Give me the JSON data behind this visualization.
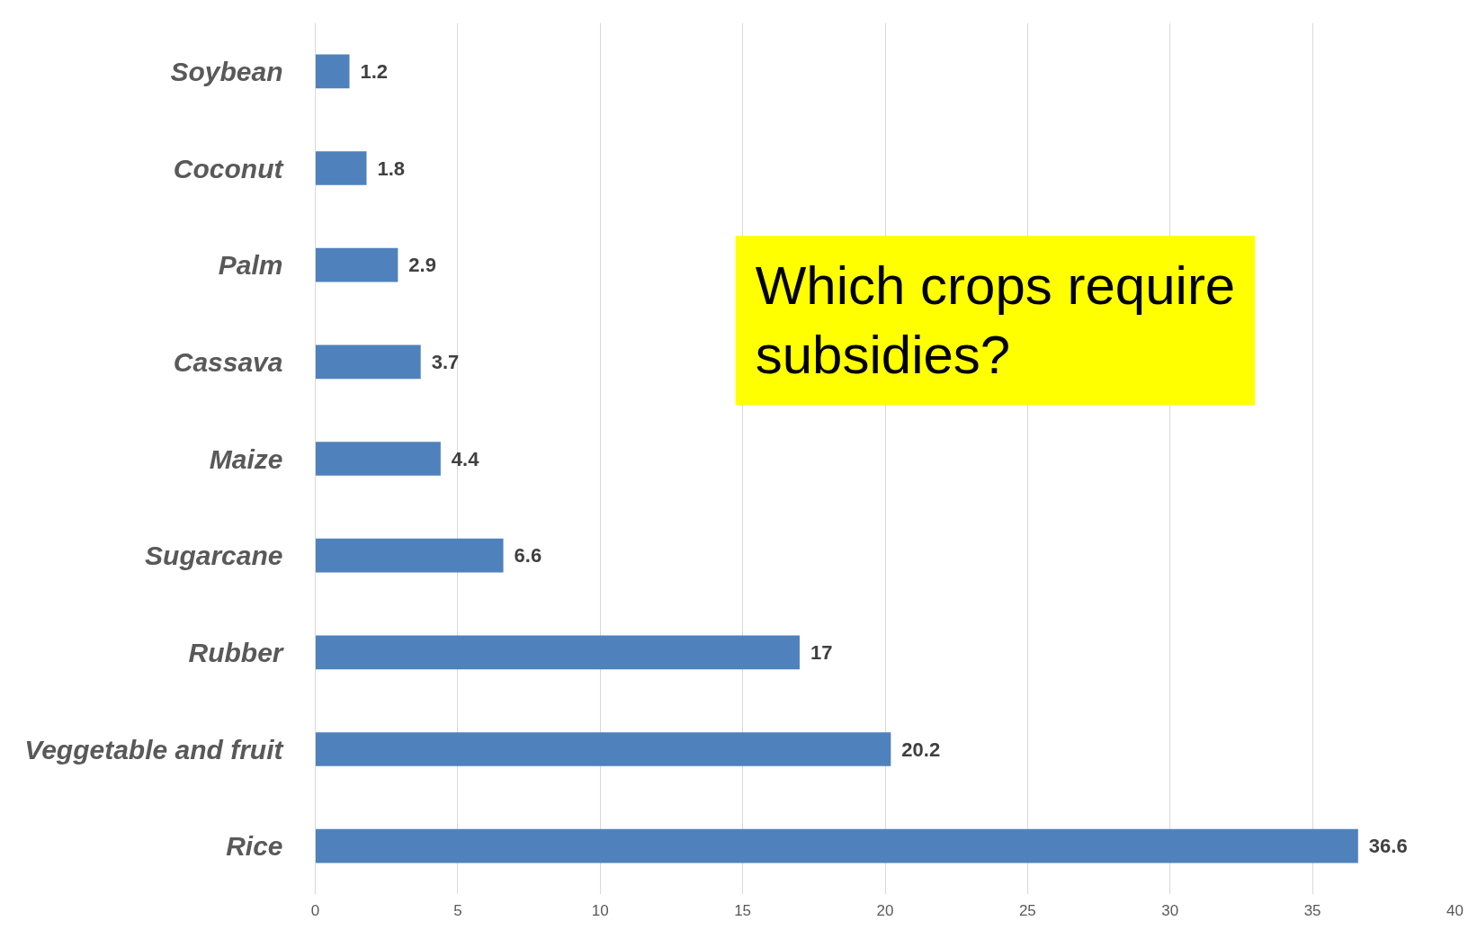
{
  "chart_data": {
    "type": "bar",
    "orientation": "horizontal",
    "categories": [
      "Soybean",
      "Coconut",
      "Palm",
      "Cassava",
      "Maize",
      "Sugarcane",
      "Rubber",
      "Veggetable and fruit",
      "Rice"
    ],
    "values": [
      1.2,
      1.8,
      2.9,
      3.7,
      4.4,
      6.6,
      17,
      20.2,
      36.6
    ],
    "color": "#4f81bd",
    "xlim": [
      0,
      40
    ],
    "xticks": [
      0,
      5,
      10,
      15,
      20,
      25,
      30,
      35,
      40
    ],
    "grid": "x",
    "data_labels": true,
    "annotations": [
      "Which crops require subsidies?"
    ]
  }
}
